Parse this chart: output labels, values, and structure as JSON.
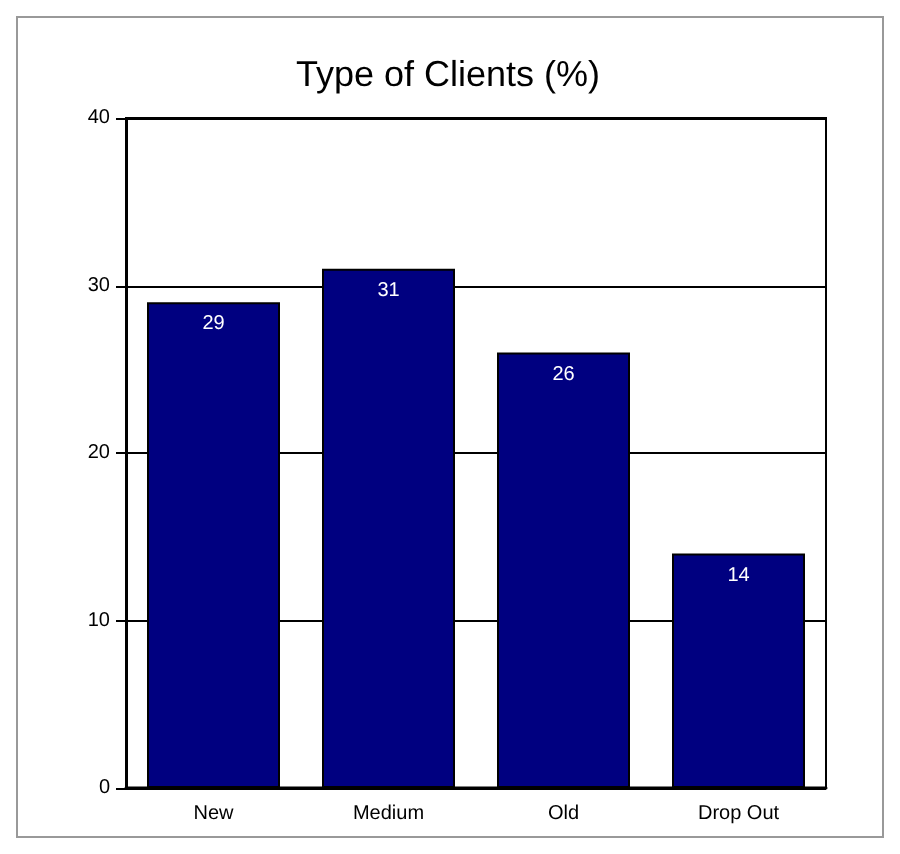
{
  "chart_data": {
    "type": "bar",
    "title": "Type of Clients (%)",
    "categories": [
      "New",
      "Medium",
      "Old",
      "Drop Out"
    ],
    "values": [
      29,
      31,
      26,
      14
    ],
    "color": "#000080",
    "ylim": [
      0,
      40
    ],
    "yticks": [
      0,
      10,
      20,
      30,
      40
    ],
    "grid": "y",
    "data_labels": true
  }
}
